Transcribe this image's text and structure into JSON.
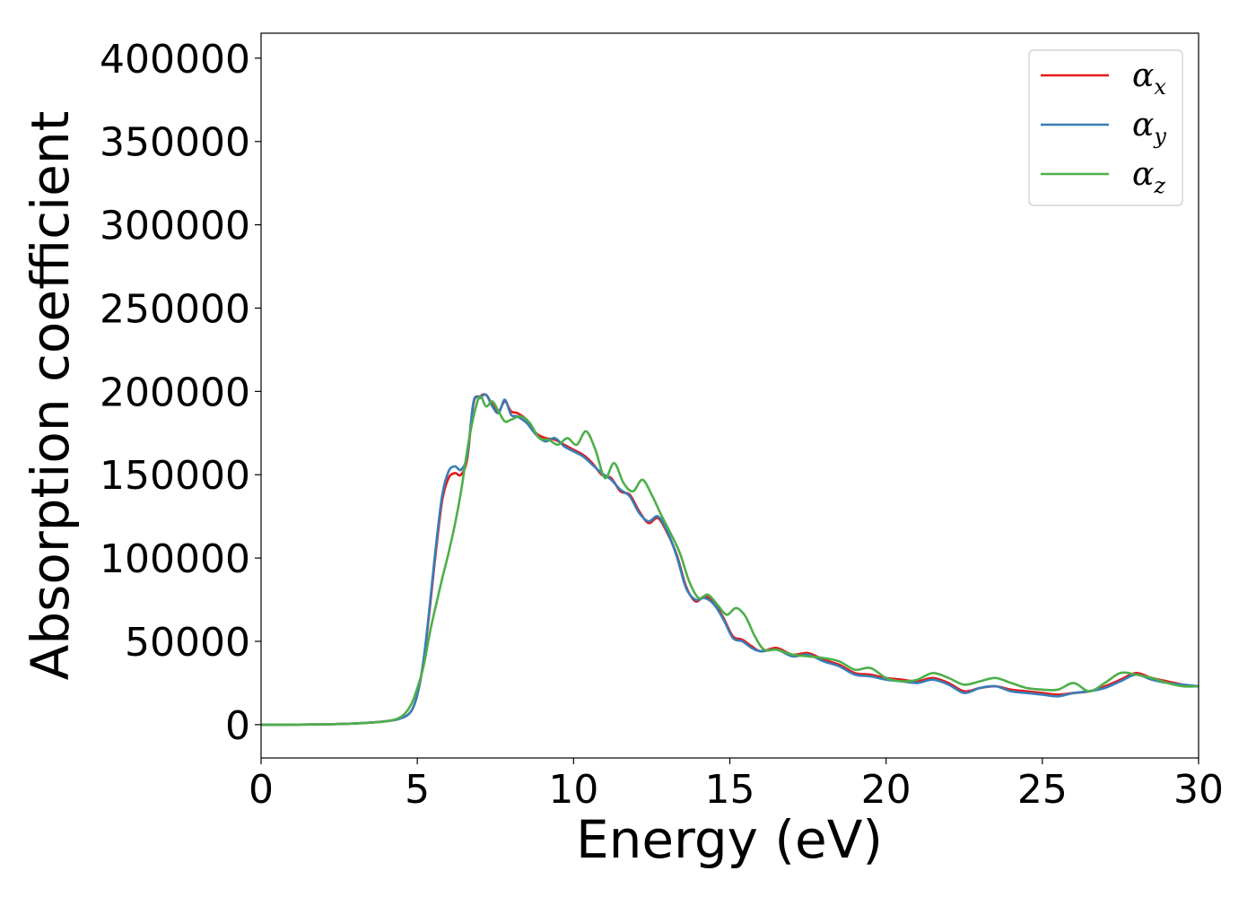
{
  "chart_data": {
    "type": "line",
    "title": "",
    "xlabel": "Energy (eV)",
    "ylabel": "Absorption coefficient",
    "xlim": [
      0,
      30
    ],
    "ylim": [
      -20000,
      415000
    ],
    "xticks": [
      0,
      5,
      10,
      15,
      20,
      25,
      30
    ],
    "yticks": [
      0,
      50000,
      100000,
      150000,
      200000,
      250000,
      300000,
      350000,
      400000
    ],
    "grid": false,
    "legend_position": "top-right",
    "series": [
      {
        "name": "α",
        "subscript": "x",
        "color": "#e41a1c",
        "x": [
          0,
          1,
          2,
          3,
          4,
          4.5,
          4.8,
          5.0,
          5.2,
          5.4,
          5.6,
          5.8,
          6.0,
          6.2,
          6.4,
          6.6,
          6.8,
          7.0,
          7.2,
          7.4,
          7.6,
          7.8,
          8.0,
          8.2,
          8.5,
          8.8,
          9.1,
          9.4,
          9.7,
          10.0,
          10.3,
          10.6,
          10.9,
          11.2,
          11.5,
          11.8,
          12.1,
          12.4,
          12.7,
          13.0,
          13.3,
          13.6,
          13.9,
          14.2,
          14.5,
          14.8,
          15.1,
          15.4,
          15.7,
          16.0,
          16.5,
          17.0,
          17.5,
          18.0,
          18.5,
          19.0,
          19.5,
          20.0,
          20.5,
          21.0,
          21.5,
          22.0,
          22.5,
          23.0,
          23.5,
          24.0,
          24.5,
          25.0,
          25.5,
          26.0,
          26.5,
          27.0,
          27.5,
          28.0,
          28.5,
          29.0,
          29.5,
          30.0
        ],
        "y": [
          0,
          0,
          200,
          700,
          2000,
          4000,
          8000,
          18000,
          38000,
          70000,
          105000,
          135000,
          148000,
          151000,
          150000,
          160000,
          193000,
          197000,
          198000,
          192000,
          188000,
          194000,
          188000,
          187000,
          183000,
          175000,
          172000,
          171000,
          168000,
          165000,
          162000,
          157000,
          150000,
          148000,
          140000,
          138000,
          128000,
          121000,
          124000,
          115000,
          102000,
          83000,
          74000,
          77000,
          73000,
          64000,
          53000,
          51000,
          47000,
          44000,
          46000,
          42000,
          43000,
          39000,
          36000,
          31000,
          30000,
          28000,
          27000,
          26000,
          28000,
          25000,
          20000,
          22000,
          23000,
          21000,
          20000,
          19000,
          18000,
          19000,
          20000,
          23000,
          27000,
          31000,
          28000,
          26000,
          24000,
          23000
        ]
      },
      {
        "name": "α",
        "subscript": "y",
        "color": "#377eb8",
        "x": [
          0,
          1,
          2,
          3,
          4,
          4.5,
          4.8,
          5.0,
          5.2,
          5.4,
          5.6,
          5.8,
          6.0,
          6.2,
          6.4,
          6.6,
          6.8,
          7.0,
          7.2,
          7.4,
          7.6,
          7.8,
          8.0,
          8.2,
          8.5,
          8.8,
          9.1,
          9.4,
          9.7,
          10.0,
          10.3,
          10.6,
          10.9,
          11.2,
          11.5,
          11.8,
          12.1,
          12.4,
          12.7,
          13.0,
          13.3,
          13.6,
          13.9,
          14.2,
          14.5,
          14.8,
          15.1,
          15.4,
          15.7,
          16.0,
          16.5,
          17.0,
          17.5,
          18.0,
          18.5,
          19.0,
          19.5,
          20.0,
          20.5,
          21.0,
          21.5,
          22.0,
          22.5,
          23.0,
          23.5,
          24.0,
          24.5,
          25.0,
          25.5,
          26.0,
          26.5,
          27.0,
          27.5,
          28.0,
          28.5,
          29.0,
          29.5,
          30.0
        ],
        "y": [
          0,
          0,
          200,
          700,
          2000,
          4000,
          8000,
          18000,
          39000,
          72000,
          108000,
          138000,
          152000,
          155000,
          153000,
          162000,
          194000,
          196000,
          198000,
          191000,
          187000,
          195000,
          186000,
          185000,
          181000,
          174000,
          170000,
          172000,
          167000,
          164000,
          161000,
          156000,
          151000,
          147000,
          141000,
          137000,
          127000,
          122000,
          125000,
          116000,
          101000,
          82000,
          75000,
          76000,
          72000,
          63000,
          52000,
          50000,
          46000,
          44000,
          45000,
          41000,
          42000,
          38000,
          35000,
          30000,
          29000,
          27000,
          26000,
          25000,
          27000,
          24000,
          19000,
          22000,
          23000,
          20000,
          19000,
          18000,
          17000,
          19000,
          20000,
          22000,
          26000,
          30000,
          27000,
          25000,
          24000,
          23000
        ]
      },
      {
        "name": "α",
        "subscript": "z",
        "color": "#4daf4a",
        "x": [
          0,
          1,
          2,
          3,
          4,
          4.5,
          4.8,
          5.0,
          5.2,
          5.4,
          5.6,
          5.8,
          6.0,
          6.2,
          6.4,
          6.6,
          6.8,
          7.0,
          7.2,
          7.4,
          7.6,
          7.8,
          8.0,
          8.3,
          8.6,
          8.9,
          9.2,
          9.5,
          9.8,
          10.1,
          10.4,
          10.7,
          11.0,
          11.3,
          11.6,
          11.9,
          12.2,
          12.5,
          12.8,
          13.1,
          13.4,
          13.7,
          14.0,
          14.3,
          14.6,
          14.9,
          15.2,
          15.5,
          15.8,
          16.1,
          16.5,
          17.0,
          17.5,
          18.0,
          18.5,
          19.0,
          19.5,
          20.0,
          20.5,
          21.0,
          21.5,
          22.0,
          22.5,
          23.0,
          23.5,
          24.0,
          24.5,
          25.0,
          25.5,
          26.0,
          26.5,
          27.0,
          27.5,
          28.0,
          28.5,
          29.0,
          29.5,
          30.0
        ],
        "y": [
          0,
          0,
          200,
          700,
          2000,
          5000,
          12000,
          22000,
          35000,
          55000,
          72000,
          88000,
          103000,
          120000,
          140000,
          165000,
          185000,
          197000,
          191000,
          194000,
          188000,
          182000,
          183000,
          185000,
          181000,
          172000,
          171000,
          168000,
          172000,
          168000,
          176000,
          165000,
          148000,
          157000,
          145000,
          140000,
          147000,
          138000,
          126000,
          115000,
          103000,
          86000,
          76000,
          78000,
          72000,
          66000,
          70000,
          65000,
          53000,
          45000,
          45000,
          42000,
          41000,
          40000,
          38000,
          33000,
          34000,
          28000,
          26000,
          27000,
          31000,
          28000,
          24000,
          26000,
          28000,
          25000,
          22000,
          21000,
          21000,
          25000,
          20000,
          25000,
          31000,
          30000,
          28000,
          25000,
          23000,
          23000
        ]
      }
    ]
  }
}
